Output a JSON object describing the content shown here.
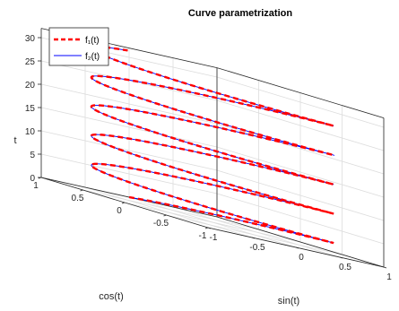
{
  "chart_data": {
    "type": "line3d",
    "title": "Curve parametrization",
    "xlabel": "sin(t)",
    "ylabel": "cos(t)",
    "zlabel": "t",
    "xlim": [
      -1,
      1
    ],
    "ylim": [
      -1,
      1
    ],
    "zlim": [
      0,
      32
    ],
    "xticks": [
      "-1",
      "-0.5",
      "0",
      "0.5",
      "1"
    ],
    "yticks": [
      "-1",
      "-0.5",
      "0",
      "0.5",
      "1"
    ],
    "zticks": [
      "0",
      "5",
      "10",
      "15",
      "20",
      "25",
      "30"
    ],
    "grid": true,
    "box": true,
    "legend": {
      "placement": "top-left",
      "entries": [
        {
          "label": "f₁(t)",
          "color": "#ff0000",
          "style": "dashed"
        },
        {
          "label": "f₂(t)",
          "color": "#0000ff",
          "style": "solid"
        }
      ]
    },
    "series": [
      {
        "x": "sin(t)",
        "y": "cos(t)",
        "t_range": [
          0,
          31.4
        ],
        "color": "#ff0000",
        "line_style": "dashed"
      },
      {
        "x": "sin(t)",
        "y": "cos(t)",
        "t_range": [
          0,
          31.4
        ],
        "color": "#0000ff",
        "line_style": "solid"
      }
    ]
  }
}
